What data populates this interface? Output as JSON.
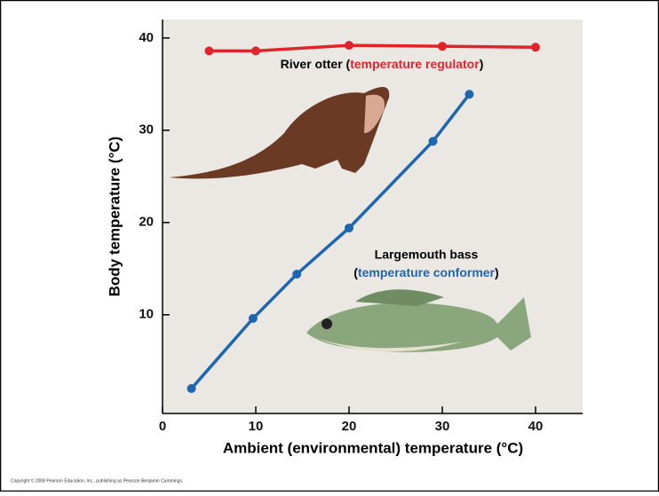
{
  "chart_data": {
    "type": "line",
    "x_label": "Ambient (environmental) temperature (°C)",
    "y_label": "Body temperature (°C)",
    "xlim": [
      0,
      45
    ],
    "ylim": [
      -0.7,
      42
    ],
    "xticks": [
      0,
      10,
      20,
      30,
      40
    ],
    "yticks": [
      10,
      20,
      30,
      40
    ],
    "series": [
      {
        "name": "River otter",
        "color": "#e0242b",
        "x": [
          5,
          10,
          20,
          30,
          40
        ],
        "values": [
          38.6,
          38.6,
          39.2,
          39.1,
          39.0
        ]
      },
      {
        "name": "Largemouth bass",
        "color": "#1f66b0",
        "x": [
          3.1,
          9.7,
          14.4,
          20,
          29,
          32.9
        ],
        "values": [
          2.0,
          9.6,
          14.4,
          19.4,
          28.8,
          33.9
        ]
      }
    ],
    "annotations": [
      [
        "River otter (",
        "temperature regulator",
        ")"
      ],
      [
        "Largemouth bass"
      ],
      [
        "(",
        "temperature conformer",
        ")"
      ]
    ],
    "copyright": "Copyright © 2008 Pearson Education, Inc., publishing as Pearson Benjamin Cummings."
  }
}
